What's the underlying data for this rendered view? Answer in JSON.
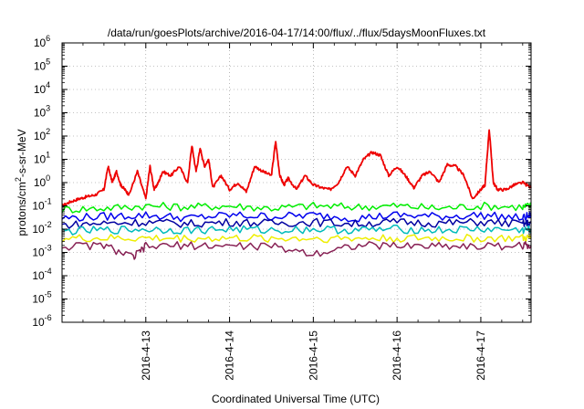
{
  "chart_data": {
    "type": "line",
    "title": "/data/run/goesPlots/archive/2016-04-17/14:00/flux/../flux/5daysMoonFluxes.txt",
    "xlabel": "Coordinated Universal Time (UTC)",
    "ylabel": "protons/cm²-s-sr-MeV",
    "yscale": "log",
    "ylim": [
      1e-06,
      1000000.0
    ],
    "xlim": [
      0,
      5.6
    ],
    "grid": true,
    "legend": "none",
    "y_ticks": [
      {
        "value": 1e-06,
        "base": "10",
        "exp": "-6"
      },
      {
        "value": 1e-05,
        "base": "10",
        "exp": "-5"
      },
      {
        "value": 0.0001,
        "base": "10",
        "exp": "-4"
      },
      {
        "value": 0.001,
        "base": "10",
        "exp": "-3"
      },
      {
        "value": 0.01,
        "base": "10",
        "exp": "-2"
      },
      {
        "value": 0.1,
        "base": "10",
        "exp": "-1"
      },
      {
        "value": 1,
        "base": "10",
        "exp": "0"
      },
      {
        "value": 10.0,
        "base": "10",
        "exp": "1"
      },
      {
        "value": 100.0,
        "base": "10",
        "exp": "2"
      },
      {
        "value": 1000.0,
        "base": "10",
        "exp": "3"
      },
      {
        "value": 10000.0,
        "base": "10",
        "exp": "4"
      },
      {
        "value": 100000.0,
        "base": "10",
        "exp": "5"
      },
      {
        "value": 1000000.0,
        "base": "10",
        "exp": "6"
      }
    ],
    "x_ticks": [
      {
        "value": 1,
        "label": "2016-4-13"
      },
      {
        "value": 2,
        "label": "2016-4-14"
      },
      {
        "value": 3,
        "label": "2016-4-15"
      },
      {
        "value": 4,
        "label": "2016-4-16"
      },
      {
        "value": 5,
        "label": "2016-4-17"
      }
    ],
    "series": [
      {
        "color": "#ee0000",
        "x": [
          0,
          0.1,
          0.2,
          0.3,
          0.4,
          0.5,
          0.55,
          0.6,
          0.65,
          0.7,
          0.75,
          0.8,
          0.9,
          1.0,
          1.05,
          1.1,
          1.15,
          1.2,
          1.3,
          1.4,
          1.5,
          1.55,
          1.6,
          1.65,
          1.7,
          1.75,
          1.8,
          1.9,
          2.0,
          2.1,
          2.2,
          2.3,
          2.4,
          2.5,
          2.55,
          2.6,
          2.65,
          2.7,
          2.8,
          2.9,
          3.0,
          3.1,
          3.2,
          3.3,
          3.4,
          3.5,
          3.6,
          3.7,
          3.8,
          3.9,
          4.0,
          4.1,
          4.2,
          4.3,
          4.4,
          4.5,
          4.6,
          4.7,
          4.8,
          4.9,
          5.0,
          5.05,
          5.1,
          5.15,
          5.2,
          5.3,
          5.4,
          5.5,
          5.6
        ],
        "y": [
          0.1,
          0.15,
          0.2,
          0.25,
          0.3,
          0.5,
          5,
          1,
          3,
          0.8,
          0.5,
          0.3,
          3,
          0.2,
          5,
          0.5,
          1,
          3,
          2,
          5,
          1,
          40,
          3,
          30,
          5,
          10,
          0.6,
          2,
          0.5,
          1,
          0.4,
          5,
          3,
          2,
          60,
          2,
          0.8,
          1.5,
          0.5,
          2,
          0.8,
          0.6,
          0.5,
          1,
          5,
          2,
          10,
          20,
          15,
          2,
          5,
          2,
          0.6,
          2,
          3,
          1,
          6,
          5,
          2,
          0.2,
          0.5,
          0.8,
          200,
          1,
          0.5,
          0.5,
          0.8,
          1,
          0.6
        ]
      },
      {
        "color": "#00ee00",
        "x": [
          0,
          0.5,
          1,
          1.5,
          2,
          2.5,
          3,
          3.5,
          4,
          4.5,
          5,
          5.5,
          5.6
        ],
        "y": [
          0.07,
          0.08,
          0.1,
          0.09,
          0.1,
          0.08,
          0.1,
          0.09,
          0.1,
          0.08,
          0.1,
          0.09,
          0.1
        ]
      },
      {
        "color": "#0000ee",
        "x": [
          0,
          0.5,
          1,
          1.5,
          2,
          2.5,
          3,
          3.5,
          4,
          4.5,
          5,
          5.5,
          5.6
        ],
        "y": [
          0.03,
          0.035,
          0.04,
          0.03,
          0.04,
          0.035,
          0.04,
          0.03,
          0.04,
          0.035,
          0.04,
          0.03,
          0.04
        ]
      },
      {
        "color": "#0000a0",
        "x": [
          0,
          0.5,
          1,
          1.5,
          2,
          2.5,
          3,
          3.5,
          4,
          4.5,
          5,
          5.5,
          5.6
        ],
        "y": [
          0.015,
          0.018,
          0.02,
          0.017,
          0.02,
          0.018,
          0.02,
          0.017,
          0.02,
          0.018,
          0.02,
          0.017,
          0.018
        ]
      },
      {
        "color": "#00bbbb",
        "x": [
          0,
          0.5,
          1,
          1.5,
          2,
          2.5,
          3,
          3.5,
          4,
          4.5,
          5,
          5.5,
          5.6
        ],
        "y": [
          0.008,
          0.009,
          0.01,
          0.009,
          0.01,
          0.009,
          0.01,
          0.009,
          0.01,
          0.009,
          0.01,
          0.009,
          0.01
        ]
      },
      {
        "color": "#eeee00",
        "x": [
          0,
          0.5,
          1,
          1.5,
          2,
          2.5,
          3,
          3.5,
          4,
          4.5,
          5,
          5.5,
          5.6
        ],
        "y": [
          0.004,
          0.004,
          0.004,
          0.004,
          0.004,
          0.004,
          0.004,
          0.004,
          0.004,
          0.004,
          0.004,
          0.004,
          0.004
        ]
      },
      {
        "color": "#882255",
        "x": [
          0,
          0.5,
          0.85,
          1,
          1.5,
          2,
          2.5,
          3,
          3.5,
          4,
          4.5,
          5,
          5.5,
          5.6
        ],
        "y": [
          0.0018,
          0.002,
          0.0006,
          0.0018,
          0.002,
          0.0019,
          0.0018,
          0.0009,
          0.002,
          0.0019,
          0.002,
          0.0018,
          0.002,
          0.002
        ]
      }
    ]
  }
}
